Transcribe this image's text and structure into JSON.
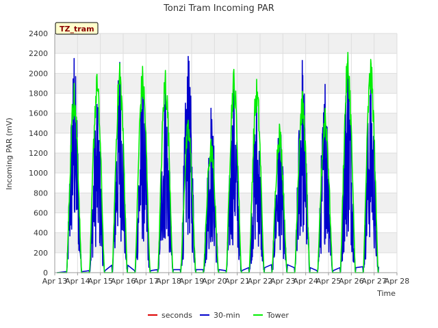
{
  "chart_data": {
    "type": "line",
    "title": "Tonzi Tram Incoming PAR",
    "xlabel": "Time",
    "ylabel": "Incoming PAR (mV)",
    "site_tag": "TZ_tram",
    "x_ticks": [
      "Apr 13",
      "Apr 14",
      "Apr 15",
      "Apr 16",
      "Apr 17",
      "Apr 18",
      "Apr 19",
      "Apr 20",
      "Apr 21",
      "Apr 22",
      "Apr 23",
      "Apr 24",
      "Apr 25",
      "Apr 26",
      "Apr 27",
      "Apr 28"
    ],
    "y_ticks": [
      0,
      200,
      400,
      600,
      800,
      1000,
      1200,
      1400,
      1600,
      1800,
      2000,
      2200,
      2400
    ],
    "xlim": [
      13,
      28
    ],
    "ylim": [
      0,
      2400
    ],
    "grid": true,
    "legend_position": "bottom",
    "series": [
      {
        "name": "seconds",
        "color": "#dd0000",
        "peaks": []
      },
      {
        "name": "30-min",
        "color": "#0000cc",
        "night_level": [
          10,
          20,
          75,
          20,
          30,
          30,
          30,
          20,
          50,
          80,
          50,
          20,
          50,
          60
        ],
        "peaks": [
          2150,
          1690,
          2110,
          1840,
          1860,
          2170,
          1650,
          1840,
          1690,
          1490,
          2130,
          1890,
          2190,
          1960
        ]
      },
      {
        "name": "Tower",
        "color": "#00ee00",
        "night_level": [
          0,
          0,
          0,
          0,
          0,
          0,
          0,
          0,
          0,
          0,
          0,
          0,
          0,
          0
        ],
        "peaks": [
          1900,
          1990,
          2100,
          2070,
          2030,
          1530,
          1340,
          2040,
          1940,
          1490,
          1820,
          1650,
          2210,
          2140
        ]
      }
    ],
    "day_centers": [
      13.85,
      14.85,
      15.85,
      16.85,
      17.85,
      18.85,
      19.85,
      20.85,
      21.85,
      22.85,
      23.85,
      24.85,
      25.85,
      26.85
    ],
    "tower_first_day_early_peak": 630
  }
}
